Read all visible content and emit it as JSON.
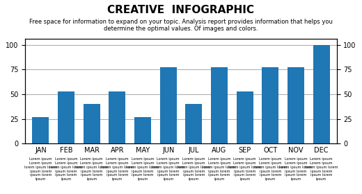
{
  "chart_data": {
    "type": "bar",
    "title": "CREATIVE  INFOGRAPHIC",
    "subtitle": "Free space for information to expand on your topic. Analysis report provides information that helps you\ndetermine the optimal values. Of images and colors.",
    "categories": [
      "JAN",
      "FEB",
      "MAR",
      "APR",
      "MAY",
      "JUN",
      "JUL",
      "AUG",
      "SEP",
      "OCT",
      "NOV",
      "DEC"
    ],
    "values": [
      27,
      53,
      40,
      53,
      27,
      77,
      40,
      77,
      53,
      77,
      77,
      100
    ],
    "ylim": [
      0,
      106
    ],
    "yticks": [
      0,
      25,
      50,
      75,
      100
    ],
    "y2lim": [
      0,
      106
    ],
    "y2ticks": [
      0,
      25,
      50,
      75,
      100
    ],
    "grid": true,
    "annotations": [
      {
        "category": "JAN",
        "text": "Lorem ipsum"
      },
      {
        "category": "JAN",
        "text": "Lorem ipsum\nlorem ipsum lorem\nipsum lorem\nipsum lorem\nipsum"
      },
      {
        "category": "FEB",
        "text": "Lorem ipsum"
      },
      {
        "category": "FEB",
        "text": "Lorem ipsum\nlorem ipsum lorem\nipsum lorem\nipsum lorem\nipsum"
      },
      {
        "category": "MAR",
        "text": "Lorem ipsum"
      },
      {
        "category": "MAR",
        "text": "Lorem ipsum\nlorem ipsum lorem\nipsum lorem\nipsum lorem\nipsum"
      },
      {
        "category": "APR",
        "text": "Lorem ipsum"
      },
      {
        "category": "APR",
        "text": "Lorem ipsum\nlorem ipsum lorem\nipsum lorem\nipsum lorem\nipsum"
      },
      {
        "category": "MAY",
        "text": "Lorem ipsum"
      },
      {
        "category": "MAY",
        "text": "Lorem ipsum\nlorem ipsum lorem\nipsum lorem\nipsum lorem\nipsum"
      },
      {
        "category": "JUN",
        "text": "Lorem ipsum"
      },
      {
        "category": "JUN",
        "text": "Lorem ipsum\nlorem ipsum lorem\nipsum lorem\nipsum lorem\nipsum"
      },
      {
        "category": "JUL",
        "text": "Lorem ipsum"
      },
      {
        "category": "JUL",
        "text": "Lorem ipsum\nlorem ipsum lorem\nipsum lorem\nipsum lorem\nipsum"
      },
      {
        "category": "AUG",
        "text": "Lorem ipsum"
      },
      {
        "category": "AUG",
        "text": "Lorem ipsum\nlorem ipsum lorem\nipsum lorem\nipsum lorem\nipsum"
      },
      {
        "category": "SEP",
        "text": "Lorem ipsum"
      },
      {
        "category": "SEP",
        "text": "Lorem ipsum\nlorem ipsum lorem\nipsum lorem\nipsum lorem\nipsum"
      },
      {
        "category": "OCT",
        "text": "Lorem ipsum"
      },
      {
        "category": "OCT",
        "text": "Lorem ipsum\nlorem ipsum lorem\nipsum lorem\nipsum lorem\nipsum"
      },
      {
        "category": "NOV",
        "text": "Lorem ipsum"
      },
      {
        "category": "NOV",
        "text": "Lorem ipsum\nlorem ipsum lorem\nipsum lorem\nipsum lorem\nipsum"
      },
      {
        "category": "DEC",
        "text": "Lorem ipsum"
      },
      {
        "category": "DEC",
        "text": "Lorem ipsum\nlorem ipsum lorem\nipsum lorem\nipsum lorem\nipsum"
      }
    ]
  }
}
